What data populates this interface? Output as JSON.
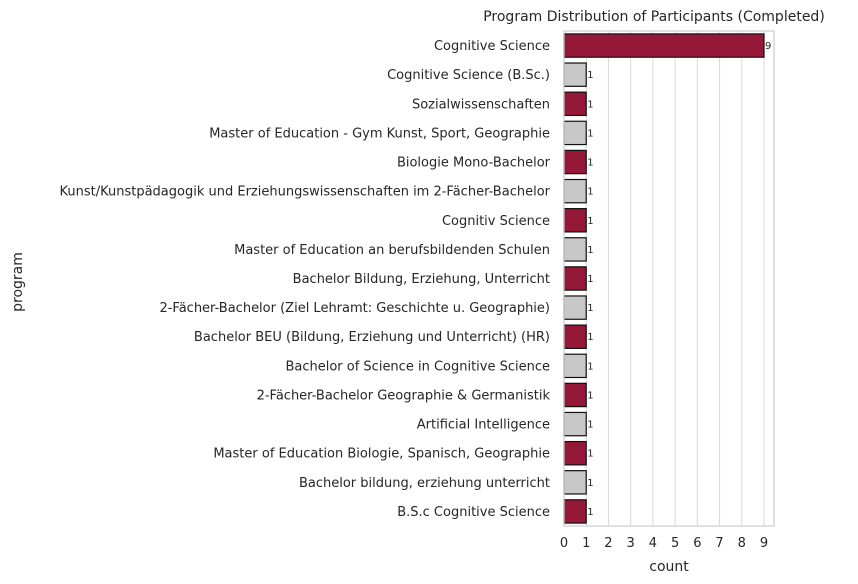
{
  "chart_data": {
    "type": "bar",
    "orientation": "horizontal",
    "title": "Program Distribution of Participants (Completed)",
    "xlabel": "count",
    "ylabel": "program",
    "xlim": [
      0,
      9.45
    ],
    "xticks": [
      0,
      1,
      2,
      3,
      4,
      5,
      6,
      7,
      8,
      9
    ],
    "grid": "vertical",
    "colors": {
      "primary": "#961838",
      "secondary": "#c8c8c8",
      "edge": "#111111",
      "grid": "#d9d9d9",
      "spine": "#cccccc"
    },
    "categories": [
      "Cognitive Science",
      "Cognitive Science (B.Sc.)",
      "Sozialwissenschaften",
      "Master of Education - Gym Kunst, Sport, Geographie",
      "Biologie Mono-Bachelor",
      "Kunst/Kunstpädagogik und Erziehungswissenschaften im 2-Fächer-Bachelor",
      "Cognitiv Science",
      "Master of Education an berufsbildenden Schulen",
      "Bachelor Bildung, Erziehung, Unterricht",
      "2-Fächer-Bachelor (Ziel Lehramt: Geschichte u. Geographie)",
      "Bachelor BEU (Bildung, Erziehung und Unterricht) (HR)",
      "Bachelor of Science in Cognitive Science",
      "2-Fächer-Bachelor Geographie & Germanistik",
      "Artificial Intelligence",
      "Master of Education Biologie, Spanisch, Geographie",
      "Bachelor bildung, erziehung unterricht",
      "B.S.c Cognitive Science"
    ],
    "values": [
      9,
      1,
      1,
      1,
      1,
      1,
      1,
      1,
      1,
      1,
      1,
      1,
      1,
      1,
      1,
      1,
      1
    ]
  }
}
